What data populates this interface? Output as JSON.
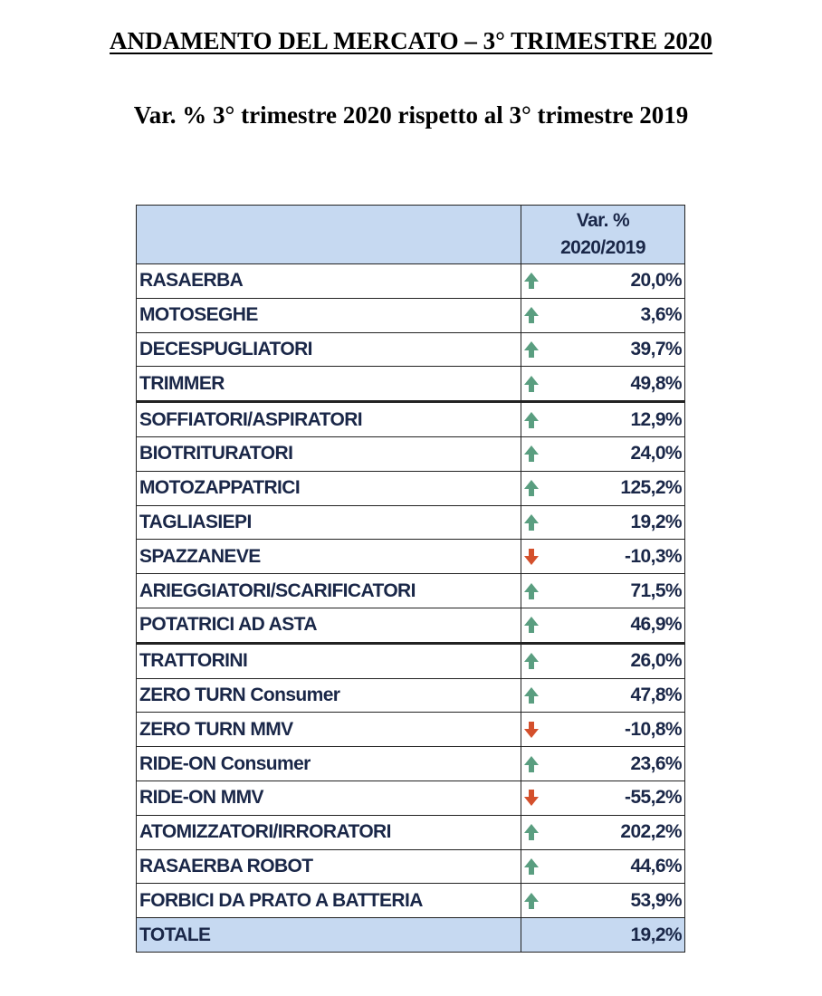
{
  "header": {
    "title": "ANDAMENTO DEL MERCATO – 3° TRIMESTRE 2020",
    "subtitle": "Var. % 3° trimestre 2020 rispetto al 3° trimestre 2019"
  },
  "table": {
    "column_header": [
      "Var. %",
      "2020/2019"
    ],
    "rows": [
      [
        "RASAERBA",
        "20,0%"
      ],
      [
        "MOTOSEGHE",
        "3,6%"
      ],
      [
        "DECESPUGLIATORI",
        "39,7%"
      ],
      [
        "TRIMMER",
        "49,8%"
      ],
      [
        "SOFFIATORI/ASPIRATORI",
        "12,9%"
      ],
      [
        "BIOTRITURATORI",
        "24,0%"
      ],
      [
        "MOTOZAPPATRICI",
        "125,2%"
      ],
      [
        "TAGLIASIEPI",
        "19,2%"
      ],
      [
        "SPAZZANEVE",
        "-10,3%"
      ],
      [
        "ARIEGGIATORI/SCARIFICATORI",
        "71,5%"
      ],
      [
        "POTATRICI AD ASTA",
        "46,9%"
      ],
      [
        "TRATTORINI",
        "26,0%"
      ],
      [
        "ZERO TURN Consumer",
        "47,8%"
      ],
      [
        "ZERO TURN MMV",
        "-10,8%"
      ],
      [
        "RIDE-ON Consumer",
        "23,6%"
      ],
      [
        "RIDE-ON MMV",
        "-55,2%"
      ],
      [
        "ATOMIZZATORI/IRRORATORI",
        "202,2%"
      ],
      [
        "RASAERBA ROBOT",
        "44,6%"
      ],
      [
        "FORBICI DA PRATO A BATTERIA",
        "53,9%"
      ]
    ],
    "total": [
      "TOTALE",
      "19,2%"
    ]
  }
}
